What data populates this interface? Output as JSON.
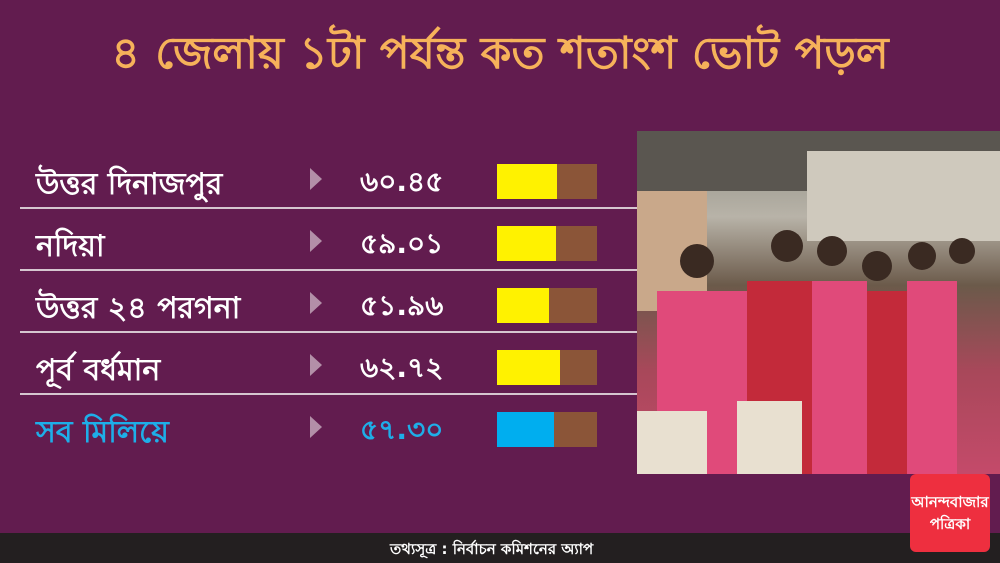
{
  "title": "৪ জেলায় ১টা পর্যন্ত কত শতাংশ ভোট পড়ল",
  "colors": {
    "background": "#621c4f",
    "title": "#f6b25a",
    "district_fill": "#fff200",
    "total_fill": "#00aeef",
    "bar_remainder": "#8b5538"
  },
  "chart_data": {
    "type": "bar",
    "orientation": "horizontal",
    "title": "৪ জেলায় ১টা পর্যন্ত কত শতাংশ ভোট পড়ল",
    "ylim": [
      0,
      100
    ],
    "rows": [
      {
        "label": "উত্তর দিনাজপুর",
        "display": "৬০.৪৫",
        "value": 60.45,
        "total": false
      },
      {
        "label": "নদিয়া",
        "display": "৫৯.০১",
        "value": 59.01,
        "total": false
      },
      {
        "label": "উত্তর ২৪ পরগনা",
        "display": "৫১.৯৬",
        "value": 51.96,
        "total": false
      },
      {
        "label": "পূর্ব বর্ধমান",
        "display": "৬২.৭২",
        "value": 62.72,
        "total": false
      },
      {
        "label": "সব মিলিয়ে",
        "display": "৫৭.৩০",
        "value": 57.3,
        "total": true
      }
    ]
  },
  "photo": {
    "description_icon": "voters-queue-photo"
  },
  "footer": {
    "source": "তথ্যসূত্র : নির্বাচন কমিশনের অ্যাপ"
  },
  "logo": {
    "line1": "আনন্দবাজার",
    "line2": "পত্রিকা"
  }
}
